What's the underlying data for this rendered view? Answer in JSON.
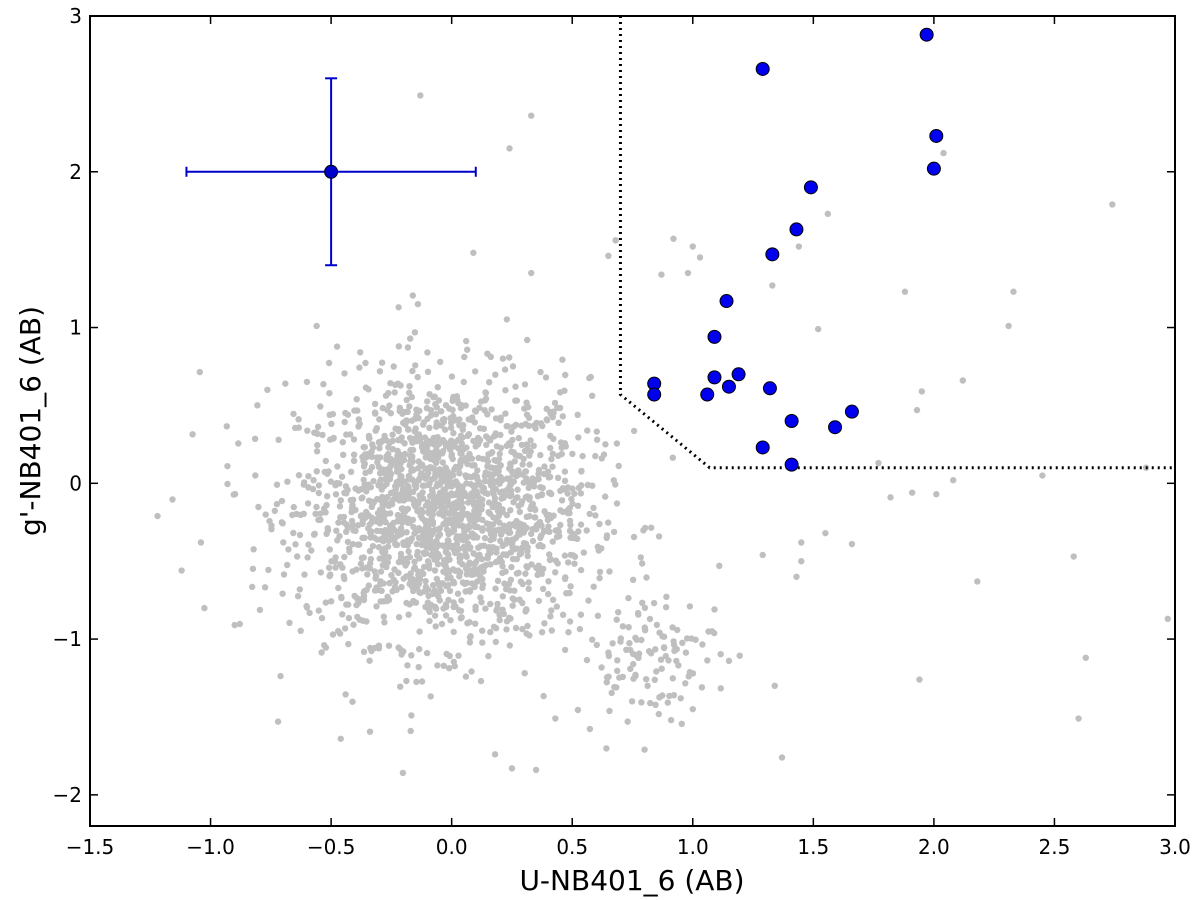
{
  "chart_data": {
    "type": "scatter",
    "title": "",
    "xlabel": "U-NB401_6 (AB)",
    "ylabel": "g'-NB401_6 (AB)",
    "xlim": [
      -1.5,
      3.0
    ],
    "ylim": [
      -2.2,
      3.0
    ],
    "xticks": [
      -1.5,
      -1.0,
      -0.5,
      0.0,
      0.5,
      1.0,
      1.5,
      2.0,
      2.5,
      3.0
    ],
    "xtick_labels": [
      "−1.5",
      "−1.0",
      "−0.5",
      "0.0",
      "0.5",
      "1.0",
      "1.5",
      "2.0",
      "2.5",
      "3.0"
    ],
    "yticks": [
      -2,
      -1,
      0,
      1,
      2,
      3
    ],
    "ytick_labels": [
      "−2",
      "−1",
      "0",
      "1",
      "2",
      "3"
    ],
    "grid": false,
    "colors": {
      "background_points": "#bfbfbf",
      "highlighted_points": "#0000ee",
      "error_bar": "#0000cc",
      "selection_boundary": "#000000"
    },
    "series": [
      {
        "label_visible": false,
        "marker": "small-gray-dot",
        "description_count_note": "about 2000 background sources clustered around (0, -0.2)",
        "points_scattered_outliers": [
          [
            -0.13,
            2.49
          ],
          [
            0.33,
            2.36
          ],
          [
            0.24,
            2.15
          ],
          [
            0.09,
            1.48
          ],
          [
            0.33,
            1.35
          ],
          [
            0.68,
            1.56
          ],
          [
            0.65,
            1.46
          ],
          [
            0.92,
            1.57
          ],
          [
            1.0,
            1.52
          ],
          [
            1.03,
            1.45
          ],
          [
            0.98,
            1.35
          ],
          [
            0.87,
            1.34
          ],
          [
            1.33,
            1.27
          ],
          [
            1.44,
            1.52
          ],
          [
            1.56,
            1.73
          ],
          [
            1.52,
            0.99
          ],
          [
            1.88,
            1.23
          ],
          [
            2.04,
            2.12
          ],
          [
            2.74,
            1.79
          ],
          [
            2.33,
            1.23
          ],
          [
            2.31,
            1.01
          ],
          [
            2.12,
            0.66
          ],
          [
            1.95,
            0.59
          ],
          [
            1.93,
            0.47
          ],
          [
            1.77,
            0.13
          ],
          [
            1.91,
            -0.06
          ],
          [
            1.82,
            -0.09
          ],
          [
            2.01,
            -0.07
          ],
          [
            2.08,
            0.02
          ],
          [
            2.45,
            0.05
          ],
          [
            2.88,
            0.1
          ],
          [
            2.97,
            -0.87
          ],
          [
            2.63,
            -1.12
          ],
          [
            2.58,
            -0.47
          ],
          [
            2.6,
            -1.51
          ],
          [
            2.18,
            -0.63
          ],
          [
            1.94,
            -1.26
          ],
          [
            1.66,
            -0.39
          ],
          [
            1.55,
            -0.32
          ],
          [
            1.45,
            -0.38
          ],
          [
            1.45,
            -0.5
          ],
          [
            1.43,
            -0.6
          ],
          [
            1.34,
            -1.3
          ],
          [
            1.37,
            -1.76
          ],
          [
            1.29,
            -0.46
          ],
          [
            1.15,
            -1.14
          ],
          [
            1.09,
            -0.81
          ],
          [
            1.08,
            -0.95
          ],
          [
            1.11,
            -0.53
          ],
          [
            1.0,
            -1.45
          ],
          [
            0.95,
            -1.38
          ],
          [
            0.91,
            -1.52
          ],
          [
            0.8,
            -1.71
          ],
          [
            0.73,
            -1.53
          ],
          [
            0.43,
            -1.51
          ],
          [
            0.35,
            -1.84
          ],
          [
            0.25,
            -1.83
          ],
          [
            0.18,
            -1.74
          ],
          [
            -0.17,
            -1.59
          ],
          [
            -0.46,
            -1.64
          ],
          [
            -0.72,
            -1.53
          ],
          [
            -0.9,
            -0.91
          ],
          [
            -1.12,
            -0.56
          ],
          [
            -1.22,
            -0.21
          ],
          [
            -1.04,
            -0.38
          ],
          [
            -0.93,
            0.11
          ],
          [
            -0.56,
            1.01
          ],
          [
            -0.69,
            0.64
          ],
          [
            -0.22,
            1.13
          ],
          [
            -0.14,
            1.15
          ]
        ]
      },
      {
        "label_visible": false,
        "marker": "large-blue-circle",
        "points": [
          [
            1.97,
            2.88
          ],
          [
            1.29,
            2.66
          ],
          [
            2.01,
            2.23
          ],
          [
            2.0,
            2.02
          ],
          [
            1.49,
            1.9
          ],
          [
            1.43,
            1.63
          ],
          [
            1.33,
            1.47
          ],
          [
            1.14,
            1.17
          ],
          [
            1.09,
            0.94
          ],
          [
            0.84,
            0.64
          ],
          [
            0.84,
            0.57
          ],
          [
            1.09,
            0.68
          ],
          [
            1.06,
            0.57
          ],
          [
            1.15,
            0.62
          ],
          [
            1.19,
            0.7
          ],
          [
            1.32,
            0.61
          ],
          [
            1.41,
            0.4
          ],
          [
            1.66,
            0.46
          ],
          [
            1.59,
            0.36
          ],
          [
            1.29,
            0.23
          ],
          [
            1.41,
            0.12
          ]
        ]
      }
    ],
    "error_bar": {
      "x": -0.5,
      "y": 2.0,
      "xerr": 0.6,
      "yerr": 0.6
    },
    "selection_boundary": [
      [
        0.7,
        3.0
      ],
      [
        0.7,
        0.57
      ],
      [
        1.07,
        0.1
      ],
      [
        3.0,
        0.1
      ]
    ]
  }
}
